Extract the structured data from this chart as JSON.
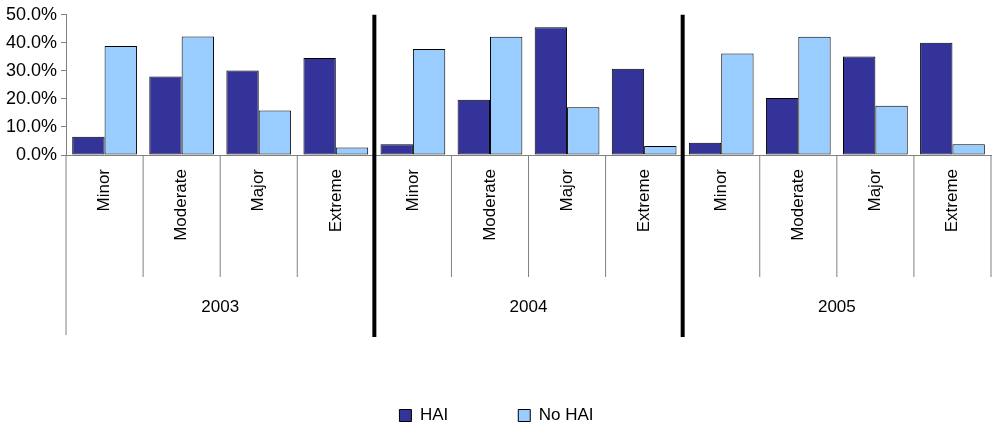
{
  "chart_data": {
    "type": "bar",
    "categories": [
      "Minor",
      "Moderate",
      "Major",
      "Extreme",
      "Minor",
      "Moderate",
      "Major",
      "Extreme",
      "Minor",
      "Moderate",
      "Major",
      "Extreme"
    ],
    "series": [
      {
        "name": "HAI",
        "color": "#333399",
        "values": [
          6.5,
          28.0,
          30.1,
          34.6,
          3.8,
          19.7,
          45.6,
          30.8,
          4.4,
          20.3,
          35.1,
          40.0
        ]
      },
      {
        "name": "No HAI",
        "color": "#99ccff",
        "values": [
          38.9,
          42.3,
          15.9,
          2.7,
          37.8,
          42.2,
          17.0,
          3.2,
          36.2,
          42.2,
          17.6,
          3.8
        ]
      }
    ],
    "ylim": [
      0,
      50
    ],
    "yticks": [
      {
        "value": 0,
        "label": "0.0%"
      },
      {
        "value": 10,
        "label": "10.0%"
      },
      {
        "value": 20,
        "label": "20.0%"
      },
      {
        "value": 30,
        "label": "30.0%"
      },
      {
        "value": 40,
        "label": "40.0%"
      },
      {
        "value": 50,
        "label": "50.0%"
      }
    ],
    "annotations": [
      "2003",
      "2004",
      "2005"
    ],
    "grid": false,
    "legend": "bottom"
  }
}
